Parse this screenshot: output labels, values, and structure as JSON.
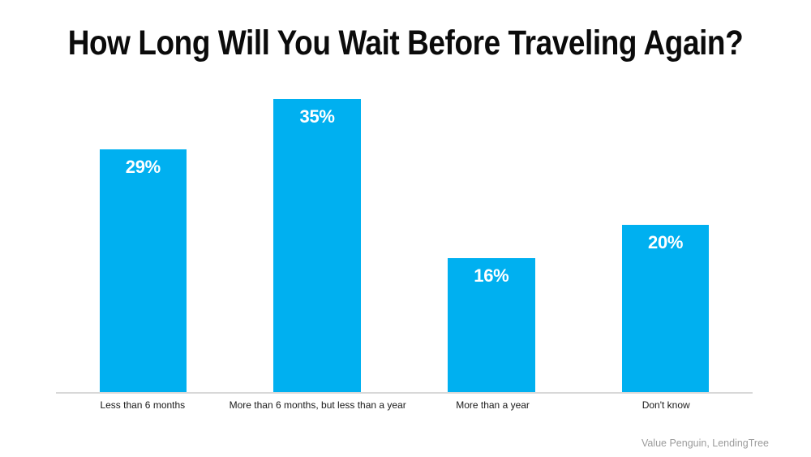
{
  "title": "How Long Will You Wait Before Traveling Again?",
  "source": "Value Penguin, LendingTree",
  "colors": {
    "background": "#FFFFFF",
    "bar": "#00B0F0",
    "axis_line": "#D8D8D8",
    "title_text": "#0B0B0B",
    "value_label_text": "#FFFFFF",
    "category_text": "#1A1A1A",
    "source_text": "#9B9B9B"
  },
  "chart_data": {
    "type": "bar",
    "title": "How Long Will You Wait Before Traveling Again?",
    "categories": [
      "Less than 6 months",
      "More than 6 months, but less than a year",
      "More than a year",
      "Don't know"
    ],
    "values": [
      29,
      35,
      16,
      20
    ],
    "value_labels": [
      "29%",
      "35%",
      "16%",
      "20%"
    ],
    "xlabel": "",
    "ylabel": "",
    "ylim": [
      0,
      37
    ],
    "grid": false,
    "legend": null,
    "y_axis_visible": false,
    "x_axis_line": true,
    "bar_color": "#00B0F0",
    "value_label_position": "inside-top",
    "value_label_color": "#FFFFFF",
    "source_annotation": "Value Penguin, LendingTree"
  }
}
